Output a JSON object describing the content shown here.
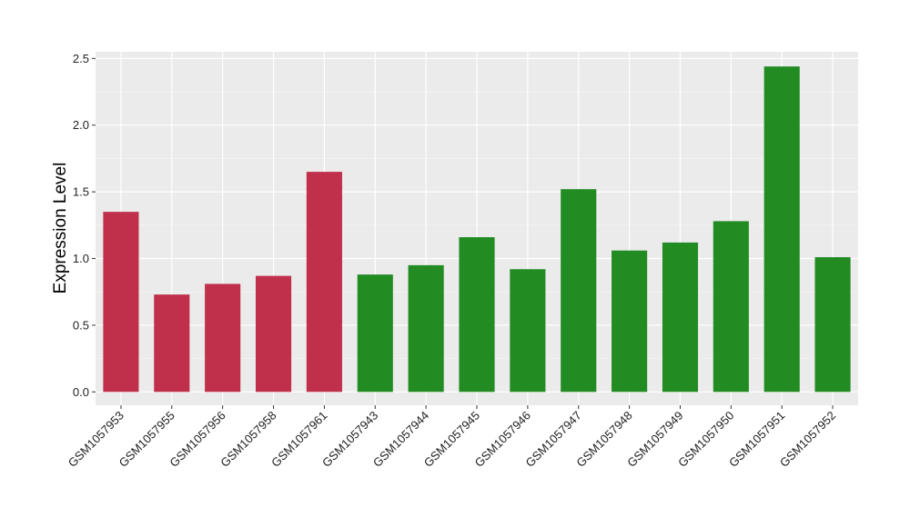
{
  "chart_data": {
    "type": "bar",
    "title": "",
    "xlabel": "",
    "ylabel": "Expression Level",
    "ylim": [
      -0.1,
      2.55
    ],
    "yticks": [
      "0.0",
      "0.5",
      "1.0",
      "1.5",
      "2.0",
      "2.5"
    ],
    "grid": true,
    "categories": [
      "GSM1057953",
      "GSM1057955",
      "GSM1057956",
      "GSM1057958",
      "GSM1057961",
      "GSM1057943",
      "GSM1057944",
      "GSM1057945",
      "GSM1057946",
      "GSM1057947",
      "GSM1057948",
      "GSM1057949",
      "GSM1057950",
      "GSM1057951",
      "GSM1057952"
    ],
    "values": [
      1.35,
      0.73,
      0.81,
      0.87,
      1.65,
      0.88,
      0.95,
      1.16,
      0.92,
      1.52,
      1.06,
      1.12,
      1.28,
      2.44,
      1.01
    ],
    "group_colors": [
      "#c0304a",
      "#c0304a",
      "#c0304a",
      "#c0304a",
      "#c0304a",
      "#228b22",
      "#228b22",
      "#228b22",
      "#228b22",
      "#228b22",
      "#228b22",
      "#228b22",
      "#228b22",
      "#228b22",
      "#228b22"
    ],
    "panel_background": "#ebebeb",
    "grid_color": "#ffffff"
  }
}
